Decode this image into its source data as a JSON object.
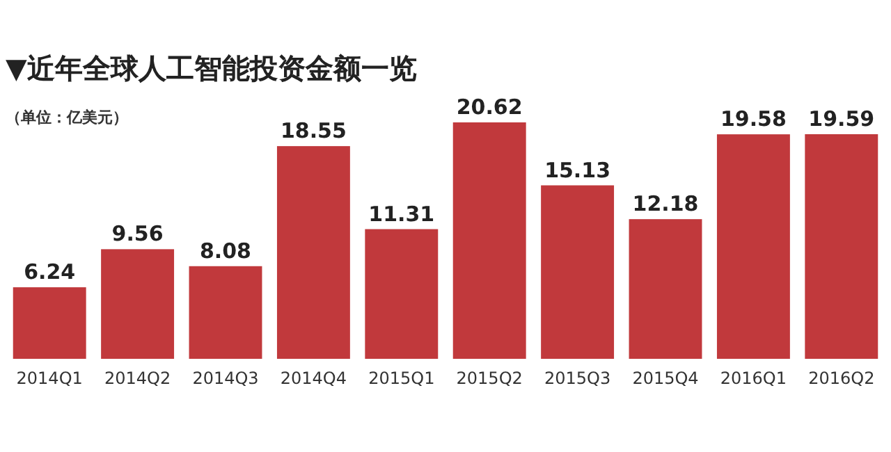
{
  "chart_data": {
    "type": "bar",
    "title": "▼近年全球人工智能投资金额一览",
    "subtitle": "（单位：亿美元）",
    "categories": [
      "2014Q1",
      "2014Q2",
      "2014Q3",
      "2014Q4",
      "2015Q1",
      "2015Q2",
      "2015Q3",
      "2015Q4",
      "2016Q1",
      "2016Q2"
    ],
    "values": [
      6.24,
      9.56,
      8.08,
      18.55,
      11.31,
      20.62,
      15.13,
      12.18,
      19.58,
      19.59
    ],
    "color": "#c1393c",
    "data_labels": true
  }
}
